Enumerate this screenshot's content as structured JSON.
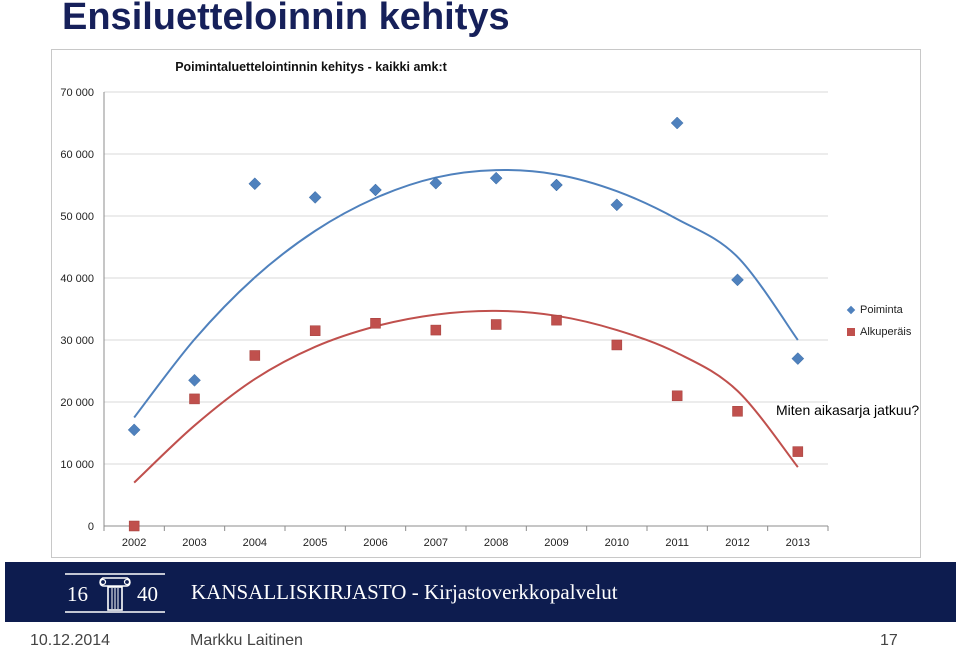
{
  "slide": {
    "title": "Ensiluetteloinnin kehitys",
    "note": "Miten aikasarja jatkuu?"
  },
  "chart_data": {
    "type": "scatter",
    "title": "Poimintaluettelointinnin kehitys - kaikki amk:t",
    "xlabel": "",
    "ylabel": "",
    "categories": [
      "2002",
      "2003",
      "2004",
      "2005",
      "2006",
      "2007",
      "2008",
      "2009",
      "2010",
      "2011",
      "2012",
      "2013"
    ],
    "ylim": [
      0,
      70000
    ],
    "yticks": [
      0,
      10000,
      20000,
      30000,
      40000,
      50000,
      60000,
      70000
    ],
    "ytick_labels": [
      "0",
      "10 000",
      "20 000",
      "30 000",
      "40 000",
      "50 000",
      "60 000",
      "70 000"
    ],
    "grid": "horizontal",
    "legend_position": "right",
    "trendline": "polynomial",
    "series": [
      {
        "name": "Poiminta",
        "marker": "diamond",
        "color": "#4f81bd",
        "values": [
          15500,
          23500,
          55200,
          53000,
          54200,
          55300,
          56100,
          55000,
          51800,
          65000,
          39700,
          27000
        ],
        "trend": [
          17500,
          30100,
          40100,
          47600,
          52900,
          56200,
          57400,
          56700,
          54000,
          49500,
          43400,
          30000
        ]
      },
      {
        "name": "Alkuperäis",
        "marker": "square",
        "color": "#c0504d",
        "values": [
          0,
          20500,
          27500,
          31500,
          32700,
          31600,
          32500,
          33200,
          29200,
          21000,
          18500,
          12000
        ],
        "trend": [
          7000,
          16200,
          23700,
          28900,
          32200,
          34100,
          34700,
          33900,
          31600,
          27900,
          21800,
          9500
        ]
      }
    ]
  },
  "banner": {
    "logo_left": "16",
    "logo_right": "40",
    "text": "KANSALLISKIRJASTO - Kirjastoverkkopalvelut",
    "color": "#0d1c4f"
  },
  "footer": {
    "date": "10.12.2014",
    "author": "Markku Laitinen",
    "page": "17"
  }
}
